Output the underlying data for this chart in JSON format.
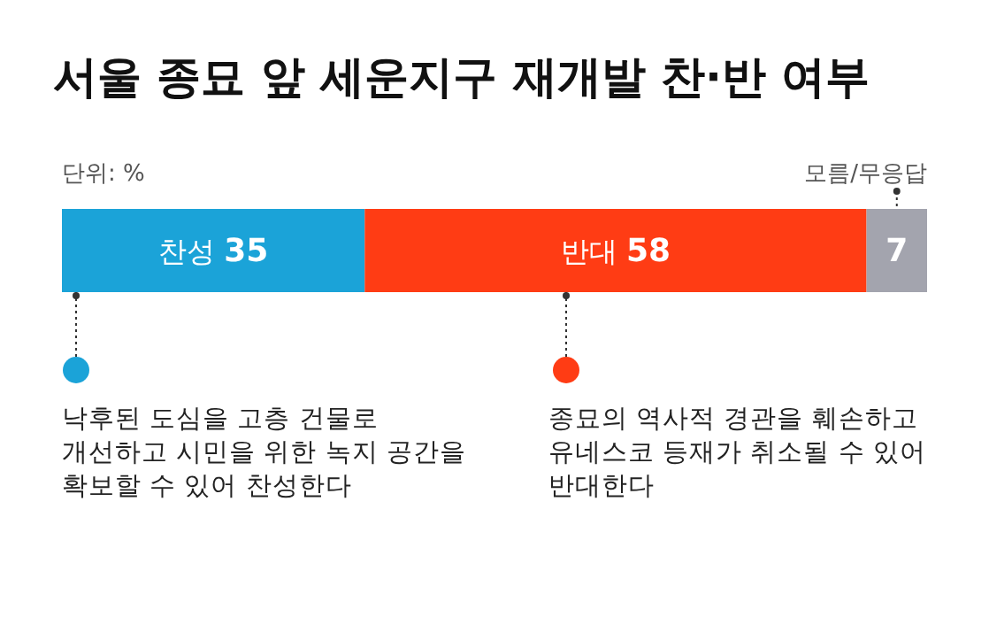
{
  "chart_data": {
    "type": "bar",
    "orientation": "horizontal",
    "stacked": true,
    "title": "서울 종묘 앞 세운지구 재개발 찬·반 여부",
    "categories": [
      null
    ],
    "xlim": [
      0,
      100
    ],
    "data_labels": true,
    "series": [
      {
        "name": "찬성",
        "color": "#1ba3d8",
        "values": [
          35
        ]
      },
      {
        "name": "반대",
        "color": "#ff3c14",
        "values": [
          58
        ]
      },
      {
        "name": "모름/무응답",
        "color": "#a3a4ae",
        "values": [
          7
        ]
      }
    ],
    "annotations": [
      "단위: %",
      "낙후된 도심을 고층 건물로 개선하고 시민을 위한 녹지 공간을 확보할 수 있어 찬성한다",
      "종묘의 역사적 경관을 훼손하고 유네스코 등재가 취소될 수 있어 반대한다"
    ]
  }
}
